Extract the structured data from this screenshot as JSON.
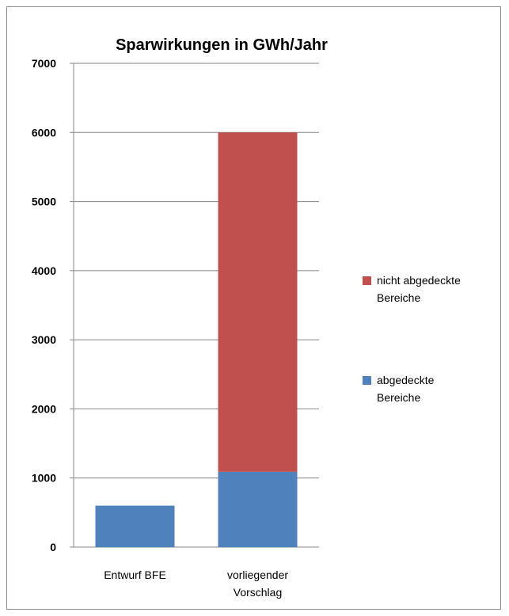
{
  "chart_data": {
    "type": "bar",
    "stacked": true,
    "title": "Sparwirkungen in GWh/Jahr",
    "xlabel": "",
    "ylabel": "",
    "categories": [
      [
        "Entwurf BFE"
      ],
      [
        "vorliegender",
        "Vorschlag"
      ]
    ],
    "series": [
      {
        "name": [
          "abgedeckte",
          "Bereiche"
        ],
        "values": [
          600,
          1090
        ],
        "color": "#4f81bd"
      },
      {
        "name": [
          "nicht abgedeckte",
          "Bereiche"
        ],
        "values": [
          0,
          4910
        ],
        "color": "#c0504d"
      }
    ],
    "ylim": [
      0,
      7000
    ],
    "yticks": [
      "0",
      "1000",
      "2000",
      "3000",
      "4000",
      "5000",
      "6000",
      "7000"
    ],
    "grid": true,
    "legend_position": "right"
  }
}
